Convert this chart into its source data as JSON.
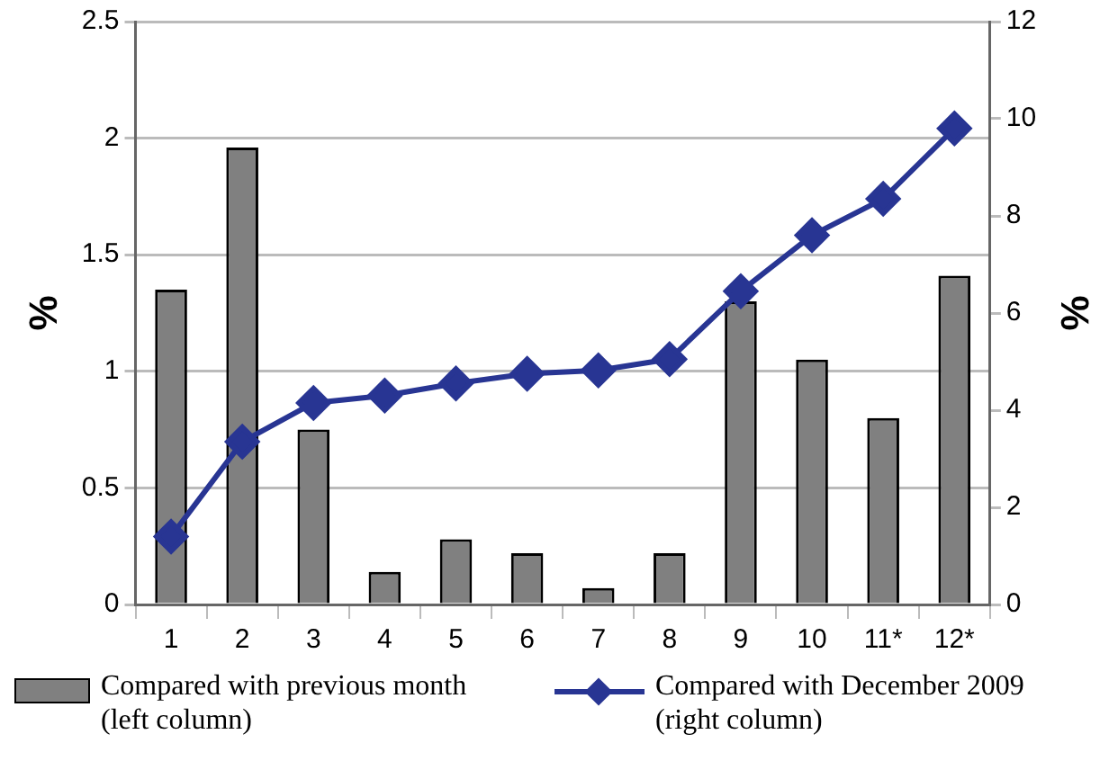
{
  "chart_data": {
    "type": "bar",
    "categories": [
      "1",
      "2",
      "3",
      "4",
      "5",
      "6",
      "7",
      "8",
      "9",
      "10",
      "11*",
      "12*"
    ],
    "series": [
      {
        "name": "Compared with previous month (left column)",
        "color": "#808080",
        "values": [
          1.35,
          1.96,
          0.75,
          0.14,
          0.28,
          0.22,
          0.07,
          0.22,
          1.3,
          1.05,
          0.8,
          1.41
        ]
      },
      {
        "name": "Compared with December 2009 (right column)",
        "type": "line",
        "axis": "y2",
        "color": "#283593",
        "values": [
          1.4,
          3.35,
          4.15,
          4.3,
          4.55,
          4.75,
          4.82,
          5.05,
          6.45,
          7.6,
          8.35,
          9.8
        ]
      }
    ],
    "ylabel": "%",
    "y2label": "%",
    "ylim": [
      0,
      2.5
    ],
    "yticks": [
      0,
      0.5,
      1,
      1.5,
      2,
      2.5
    ],
    "y2lim": [
      0,
      12
    ],
    "y2ticks": [
      0,
      2,
      4,
      6,
      8,
      10,
      12
    ],
    "grid": "y",
    "legend": "bottom",
    "marker": "diamond",
    "line_style": "solid"
  }
}
